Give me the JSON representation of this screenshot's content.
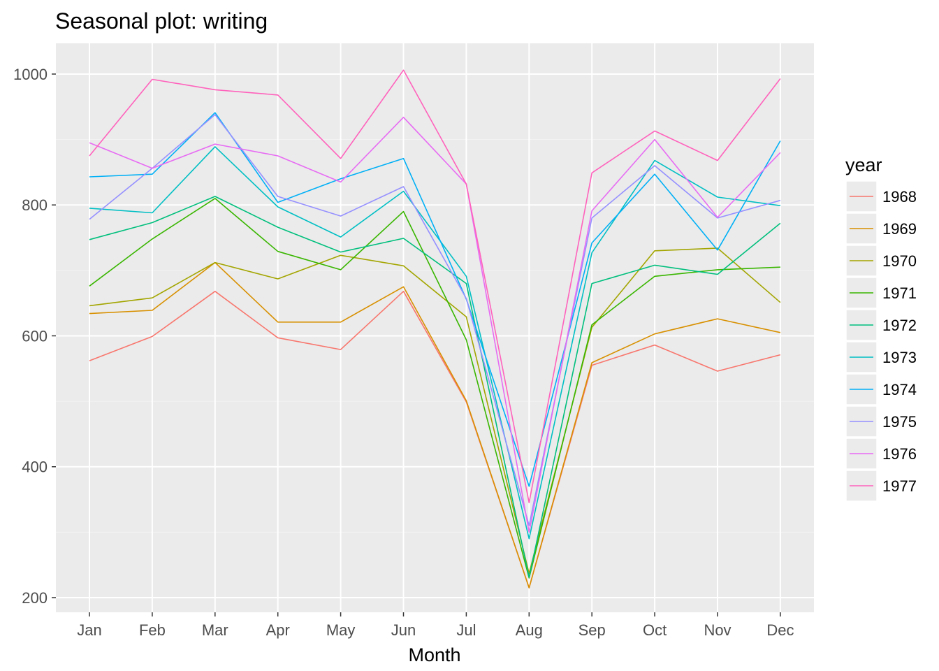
{
  "chart_data": {
    "type": "line",
    "title": "Seasonal plot: writing",
    "xlabel": "Month",
    "ylabel": "",
    "categories": [
      "Jan",
      "Feb",
      "Mar",
      "Apr",
      "May",
      "Jun",
      "Jul",
      "Aug",
      "Sep",
      "Oct",
      "Nov",
      "Dec"
    ],
    "ylim": [
      180,
      1050
    ],
    "yticks": [
      200,
      400,
      600,
      800,
      1000
    ],
    "grid": true,
    "legend": {
      "title": "year",
      "placement": "right"
    },
    "series": [
      {
        "name": "1968",
        "color": "#F8766D",
        "values": [
          562,
          599,
          668,
          597,
          579,
          668,
          499,
          215,
          555,
          586,
          546,
          571
        ]
      },
      {
        "name": "1969",
        "color": "#D89000",
        "values": [
          634,
          639,
          712,
          621,
          621,
          675,
          501,
          215,
          559,
          603,
          626,
          605
        ]
      },
      {
        "name": "1970",
        "color": "#A3A500",
        "values": [
          646,
          658,
          712,
          687,
          723,
          707,
          629,
          237,
          613,
          730,
          734,
          651
        ]
      },
      {
        "name": "1971",
        "color": "#39B600",
        "values": [
          676,
          748,
          810,
          729,
          701,
          790,
          594,
          230,
          617,
          691,
          701,
          705
        ]
      },
      {
        "name": "1972",
        "color": "#00BF7D",
        "values": [
          747,
          773,
          813,
          766,
          728,
          749,
          680,
          231,
          680,
          708,
          694,
          772
        ]
      },
      {
        "name": "1973",
        "color": "#00BFC4",
        "values": [
          795,
          788,
          889,
          797,
          751,
          821,
          691,
          290,
          727,
          868,
          812,
          799
        ]
      },
      {
        "name": "1974",
        "color": "#00B0F6",
        "values": [
          843,
          847,
          941,
          804,
          840,
          871,
          656,
          370,
          742,
          847,
          731,
          898
        ]
      },
      {
        "name": "1975",
        "color": "#9590FF",
        "values": [
          778,
          856,
          938,
          813,
          783,
          828,
          657,
          310,
          780,
          860,
          780,
          807
        ]
      },
      {
        "name": "1976",
        "color": "#E76BF3",
        "values": [
          895,
          856,
          893,
          875,
          835,
          934,
          832,
          300,
          791,
          900,
          781,
          880
        ]
      },
      {
        "name": "1977",
        "color": "#FF62BC",
        "values": [
          875,
          992,
          976,
          968,
          871,
          1006,
          832,
          345,
          849,
          913,
          868,
          993
        ]
      }
    ]
  },
  "colors": {
    "panel_background": "#EBEBEB",
    "grid_major": "#FFFFFF",
    "grid_minor": "#F2F2F2"
  }
}
